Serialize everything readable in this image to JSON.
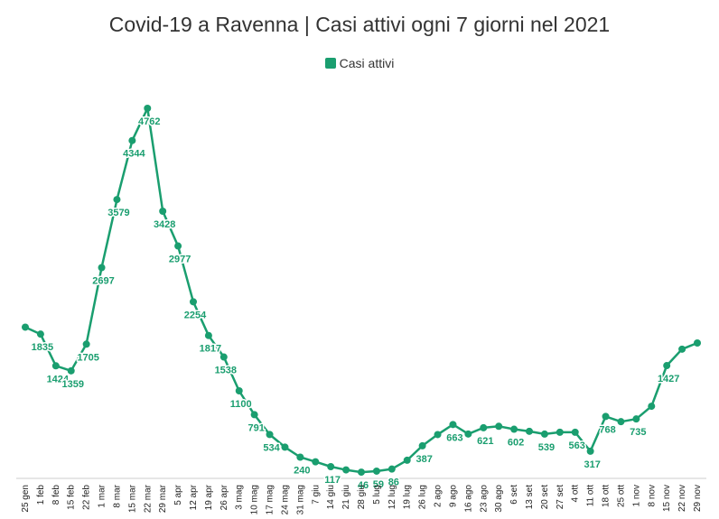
{
  "chart_data": {
    "type": "line",
    "title": "Covid-19 a Ravenna | Casi attivi ogni 7 giorni nel 2021",
    "xlabel": "",
    "ylabel": "",
    "ylim": [
      0,
      5000
    ],
    "grid": false,
    "legend": "top-center",
    "categories": [
      "25 gen",
      "1 feb",
      "8 feb",
      "15 feb",
      "22 feb",
      "1 mar",
      "8 mar",
      "15 mar",
      "22 mar",
      "29 mar",
      "5 apr",
      "12 apr",
      "19 apr",
      "26 apr",
      "3 mag",
      "10 mag",
      "17 mag",
      "24 mag",
      "31 mag",
      "7 giu",
      "14 giu",
      "21 giu",
      "28 giu",
      "5 lug",
      "12 lug",
      "19 lug",
      "26 lug",
      "2 ago",
      "9 ago",
      "16 ago",
      "23 ago",
      "30 ago",
      "6 set",
      "13 set",
      "20 set",
      "27 set",
      "4 ott",
      "11 ott",
      "18 ott",
      "25 ott",
      "1 nov",
      "8 nov",
      "15 nov",
      "22 nov",
      "29 nov"
    ],
    "series": [
      {
        "name": "Casi attivi",
        "color": "#1a9e6f",
        "values": [
          1925,
          1835,
          1424,
          1359,
          1705,
          2697,
          3579,
          4344,
          4762,
          3428,
          2977,
          2254,
          1817,
          1538,
          1100,
          791,
          534,
          370,
          240,
          180,
          117,
          75,
          46,
          59,
          86,
          200,
          387,
          533,
          663,
          540,
          621,
          640,
          602,
          575,
          539,
          563,
          563,
          317,
          768,
          700,
          735,
          900,
          1427,
          1640,
          1720
        ],
        "labels": [
          "",
          "1835",
          "1424",
          "1359",
          "1705",
          "2697",
          "3579",
          "4344",
          "4762",
          "3428",
          "2977",
          "2254",
          "1817",
          "1538",
          "1100",
          "791",
          "534",
          "",
          "240",
          "",
          "117",
          "",
          "46",
          "59",
          "86",
          "",
          "387",
          "",
          "663",
          "",
          "621",
          "",
          "602",
          "",
          "539",
          "",
          "563",
          "317",
          "768",
          "",
          "735",
          "",
          "1427",
          "",
          ""
        ]
      }
    ]
  }
}
